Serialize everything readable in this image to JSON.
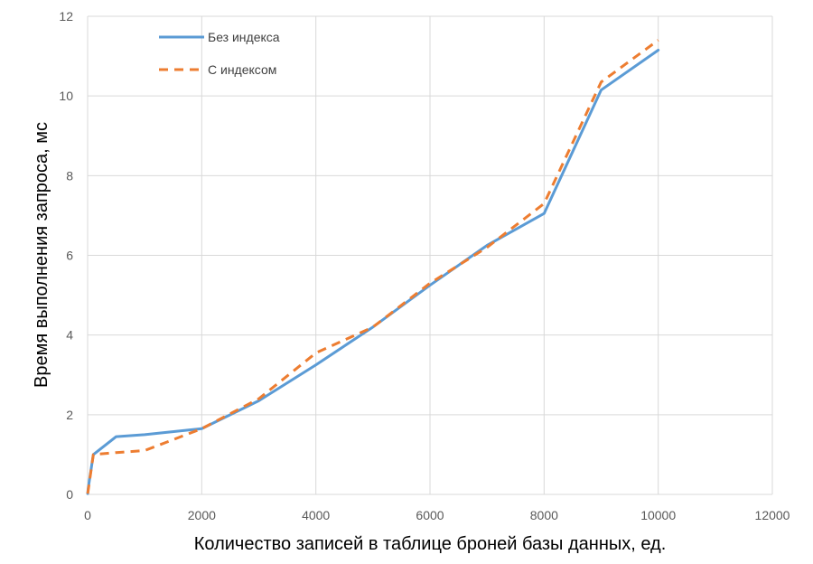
{
  "chart_data": {
    "type": "line",
    "title": "",
    "xlabel": "Количество записей в таблице броней базы данных, ед.",
    "ylabel": "Время выполнения запроса, мс",
    "xlim": [
      0,
      12000
    ],
    "ylim": [
      0,
      12
    ],
    "x_ticks": [
      "0",
      "2000",
      "4000",
      "6000",
      "8000",
      "10000",
      "12000"
    ],
    "y_ticks": [
      "0",
      "2",
      "4",
      "6",
      "8",
      "10",
      "12"
    ],
    "grid": true,
    "legend_position": "top-left",
    "series": [
      {
        "name": "Без индекса",
        "color": "#5b9bd5",
        "dash": "solid",
        "points": [
          [
            1,
            0.02
          ],
          [
            10,
            0.15
          ],
          [
            100,
            1.0
          ],
          [
            500,
            1.45
          ],
          [
            1000,
            1.5
          ],
          [
            2000,
            1.65
          ],
          [
            3000,
            2.35
          ],
          [
            4000,
            3.25
          ],
          [
            5000,
            4.2
          ],
          [
            6000,
            5.25
          ],
          [
            7000,
            6.25
          ],
          [
            8000,
            7.05
          ],
          [
            9000,
            10.15
          ],
          [
            10000,
            11.15
          ]
        ]
      },
      {
        "name": "С индексом",
        "color": "#ed7d31",
        "dash": "dashed",
        "points": [
          [
            1,
            0.02
          ],
          [
            10,
            0.1
          ],
          [
            100,
            1.0
          ],
          [
            500,
            1.05
          ],
          [
            1000,
            1.1
          ],
          [
            2000,
            1.65
          ],
          [
            3000,
            2.4
          ],
          [
            4000,
            3.55
          ],
          [
            5000,
            4.2
          ],
          [
            6000,
            5.3
          ],
          [
            7000,
            6.2
          ],
          [
            8000,
            7.3
          ],
          [
            9000,
            10.35
          ],
          [
            10000,
            11.4
          ]
        ]
      }
    ]
  }
}
